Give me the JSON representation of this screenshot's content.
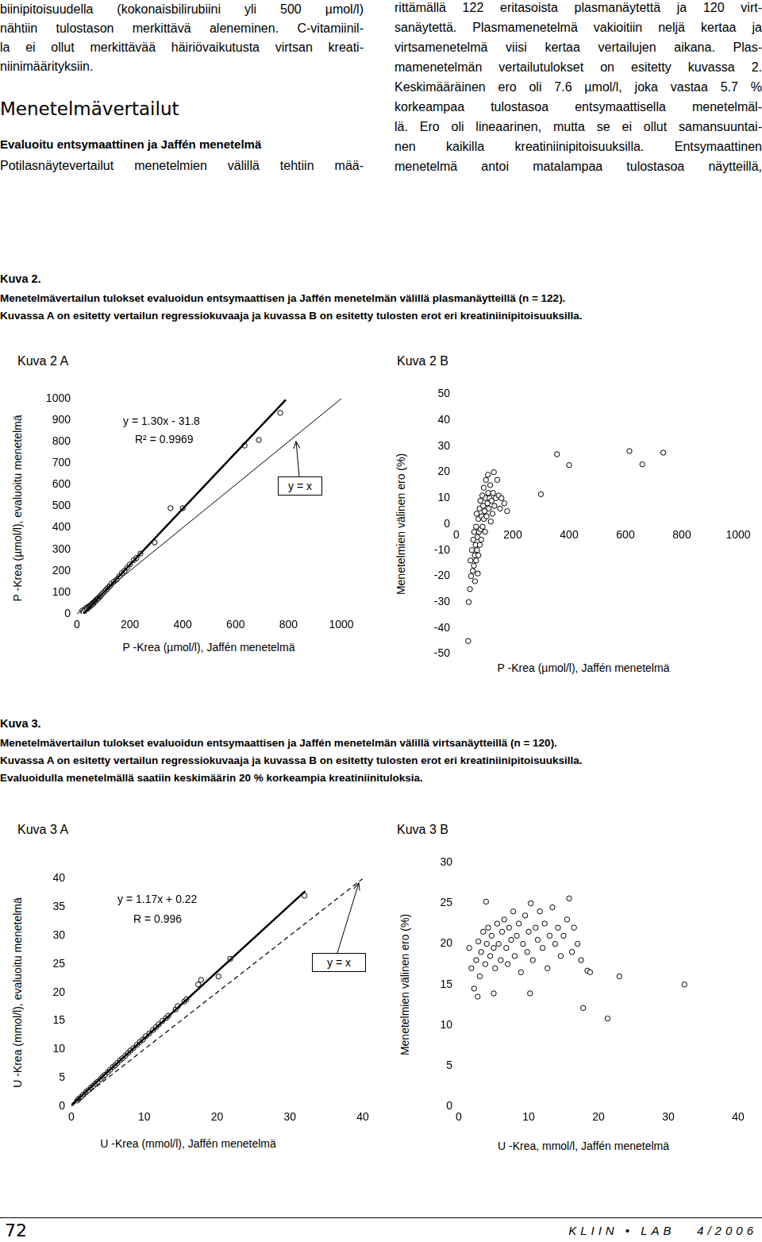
{
  "page": {
    "left_column": {
      "lines": [
        "biinipitoisuudella (kokonaisbilirubiini yli 500 µmol/l)",
        "nähtiin tulostason merkittävä aleneminen. C-vitamiinil-",
        "la ei ollut merkittävää häiriövaikutusta virtsan kreati-",
        "niinimäärityksiin."
      ],
      "heading": "Menetelmävertailut",
      "subheading": "Evaluoitu entsymaattinen ja Jaffén menetelmä",
      "after_lines": [
        "Potilasnäytevertailut menetelmien välillä tehtiin mää-"
      ]
    },
    "right_column": {
      "lines": [
        "rittämällä 122 eritasoista plasmanäytettä ja 120 virt-",
        "sanäytettä. Plasmamenetelmä vakioitiin neljä kertaa ja",
        "virtsamenetelmä viisi kertaa vertailujen aikana. Plas-",
        "mamenetelmän vertailutulokset on esitetty kuvassa 2.",
        "Keskimääräinen ero oli 7.6 µmol/l, joka vastaa 5.7 %",
        "korkeampaa tulostasoa entsymaattisella menetelmäl-",
        "lä. Ero oli lineaarinen, mutta se ei ollut samansuuntai-",
        "nen kaikilla kreatiniinipitoisuuksilla. Entsymaattinen",
        "menetelmä antoi matalampaa tulostasoa näytteillä,"
      ]
    },
    "figures": [
      {
        "label": "Kuva 2.",
        "caption": [
          "Menetelmävertailun tulokset evaluoidun entsymaattisen ja Jaffén menetelmän välillä plasmanäytteillä (n = 122).",
          "Kuvassa A on esitetty vertailun regressiokuvaaja ja kuvassa B on esitetty tulosten erot eri kreatiniinipitoisuuksilla."
        ]
      },
      {
        "label": "Kuva 3.",
        "caption": [
          "Menetelmävertailun tulokset evaluoidun entsymaattisen ja Jaffén menetelmän välillä virtsanäytteillä (n = 120).",
          "Kuvassa A on esitetty vertailun regressiokuvaaja ja kuvassa B on esitetty tulosten erot eri kreatiniinipitoisuuksilla.",
          "Evaluoidulla menetelmällä saatiin keskimäärin 20 % korkeampia kreatiniinituloksia."
        ]
      }
    ],
    "footer": {
      "page_number": "72",
      "journal": "KLIIN • LAB",
      "issue": "4/2006"
    }
  },
  "chart_data": [
    {
      "type": "scatter",
      "title": "Kuva 2 A",
      "xlabel": "P -Krea (µmol/l), Jaffén menetelmä",
      "ylabel": "P -Krea (µmol/l), evaluoitu menetelmä",
      "xlim": [
        0,
        1000
      ],
      "ylim": [
        0,
        1000
      ],
      "xticks": [
        0,
        200,
        400,
        600,
        800,
        1000
      ],
      "yticks": [
        0,
        100,
        200,
        300,
        400,
        500,
        600,
        700,
        800,
        900,
        1000
      ],
      "grid": false,
      "annotations": [
        "y = 1.30x - 31.8",
        "R² = 0.9969",
        "y = x"
      ],
      "series": [
        {
          "type": "scatter",
          "marker": "circle",
          "color": "#000000",
          "x": [
            20,
            25,
            30,
            35,
            38,
            42,
            45,
            48,
            50,
            52,
            55,
            58,
            60,
            62,
            65,
            68,
            70,
            72,
            75,
            78,
            80,
            85,
            88,
            90,
            95,
            100,
            105,
            110,
            115,
            120,
            125,
            130,
            140,
            150,
            160,
            170,
            180,
            190,
            200,
            215,
            225,
            240,
            294,
            354,
            400,
            634,
            688,
            769
          ],
          "values": [
            15,
            8,
            20,
            28,
            22,
            30,
            35,
            33,
            38,
            40,
            42,
            48,
            45,
            52,
            55,
            58,
            60,
            62,
            68,
            70,
            72,
            78,
            82,
            85,
            92,
            98,
            105,
            112,
            118,
            125,
            130,
            140,
            150,
            160,
            175,
            190,
            200,
            215,
            230,
            250,
            260,
            280,
            332,
            491,
            491,
            782,
            808,
            934
          ]
        },
        {
          "type": "line",
          "line_style": "solid",
          "color": "#000000",
          "x": [
            25,
            790
          ],
          "values": [
            0.7,
            995
          ]
        },
        {
          "type": "line",
          "line_style": "solid",
          "color": "#000000",
          "x": [
            0,
            1000
          ],
          "values": [
            0,
            1000
          ]
        }
      ]
    },
    {
      "type": "scatter",
      "title": "Kuva 2 B",
      "xlabel": "P -Krea (µmol/l), Jaffén menetelmä",
      "ylabel": "Menetelmien välinen ero (%)",
      "xlim": [
        0,
        1000
      ],
      "ylim": [
        -50,
        50
      ],
      "xticks": [
        0,
        200,
        400,
        600,
        800,
        1000
      ],
      "yticks": [
        -50,
        -40,
        -30,
        -20,
        -10,
        0,
        10,
        20,
        30,
        40,
        50
      ],
      "grid": false,
      "series": [
        {
          "type": "scatter",
          "marker": "circle",
          "color": "#000000",
          "x": [
            42,
            44,
            48,
            50,
            52,
            55,
            58,
            60,
            62,
            63,
            65,
            66,
            68,
            70,
            70,
            72,
            73,
            75,
            76,
            78,
            78,
            80,
            82,
            83,
            85,
            86,
            88,
            90,
            92,
            93,
            95,
            97,
            98,
            100,
            102,
            104,
            105,
            107,
            110,
            112,
            113,
            115,
            118,
            120,
            122,
            125,
            128,
            130,
            133,
            135,
            140,
            145,
            150,
            155,
            160,
            170,
            180,
            300,
            357,
            400,
            614,
            660,
            734
          ],
          "values": [
            -45,
            -30,
            -25,
            -14,
            -20,
            -10,
            -18,
            -6,
            -16,
            -3,
            -12,
            -22,
            -8,
            -1,
            -14,
            4,
            -10,
            -5,
            -19,
            2,
            -12,
            -3,
            6,
            -8,
            9,
            -2,
            -6,
            3,
            11,
            -1,
            7,
            14,
            2,
            5,
            -3,
            10,
            17,
            3,
            8,
            19,
            12,
            6,
            10,
            15,
            1,
            9,
            4,
            12,
            20,
            7,
            10,
            17,
            11,
            6,
            10,
            8,
            5,
            11.5,
            26.9,
            22.7,
            28.1,
            23,
            27.5
          ]
        }
      ]
    },
    {
      "type": "scatter",
      "title": "Kuva 3 A",
      "xlabel": "U -Krea (mmol/l), Jaffén menetelmä",
      "ylabel": "U -Krea (mmol/l), evaluoitu menetelmä",
      "xlim": [
        0,
        40
      ],
      "ylim": [
        0,
        40
      ],
      "xticks": [
        0,
        10,
        20,
        30,
        40
      ],
      "yticks": [
        0,
        5,
        10,
        15,
        20,
        25,
        30,
        35,
        40
      ],
      "grid": false,
      "annotations": [
        "y = 1.17x + 0.22",
        "R = 0.996",
        "y = x"
      ],
      "series": [
        {
          "type": "scatter",
          "marker": "circle",
          "color": "#000000",
          "x": [
            0.8,
            1.0,
            1.3,
            1.6,
            2.0,
            2.3,
            2.7,
            3.0,
            3.3,
            3.6,
            4.0,
            4.3,
            4.6,
            5.0,
            5.3,
            5.7,
            6.0,
            6.3,
            6.7,
            7.0,
            7.4,
            7.8,
            8.1,
            8.5,
            9.0,
            9.4,
            9.8,
            10.2,
            10.7,
            11.2,
            11.6,
            12.0,
            12.5,
            13.0,
            13.3,
            14.3,
            14.6,
            15.5,
            15.8,
            17.4,
            17.8,
            20.2,
            21.8,
            32.0
          ],
          "values": [
            1.0,
            1.3,
            1.6,
            2.0,
            2.5,
            2.8,
            3.3,
            3.6,
            4.0,
            4.3,
            4.8,
            5.2,
            5.5,
            6.0,
            6.4,
            6.9,
            7.2,
            7.6,
            8.1,
            8.4,
            8.9,
            9.4,
            9.8,
            10.2,
            10.8,
            11.3,
            11.7,
            12.3,
            12.8,
            13.4,
            13.9,
            14.4,
            15.0,
            15.5,
            15.9,
            17.0,
            17.6,
            18.4,
            18.8,
            21.4,
            22.2,
            22.8,
            25.9,
            37.0
          ]
        },
        {
          "type": "line",
          "line_style": "solid",
          "color": "#000000",
          "x": [
            0,
            32.1
          ],
          "values": [
            0.2,
            37.8
          ]
        },
        {
          "type": "line",
          "line_style": "dashed",
          "color": "#000000",
          "x": [
            0,
            40
          ],
          "values": [
            0,
            40
          ]
        }
      ]
    },
    {
      "type": "scatter",
      "title": "Kuva 3 B",
      "xlabel": "U -Krea, mmol/l, Jaffén menetelmä",
      "ylabel": "Menetelmien välinen ero (%)",
      "xlim": [
        0,
        40
      ],
      "ylim": [
        0,
        30
      ],
      "xticks": [
        0,
        10,
        20,
        30,
        40
      ],
      "yticks": [
        0,
        5,
        10,
        15,
        20,
        25,
        30
      ],
      "grid": false,
      "series": [
        {
          "type": "scatter",
          "marker": "circle",
          "color": "#000000",
          "x": [
            2.2,
            2.7,
            3.9,
            5.0,
            10.2,
            17.8,
            18.4,
            18.8,
            21.3,
            23.0,
            32.3,
            2.5,
            2.8,
            3.0,
            3.2,
            3.5,
            3.8,
            4.0,
            4.2,
            4.5,
            4.7,
            5.0,
            5.2,
            5.5,
            5.7,
            6.0,
            6.2,
            6.5,
            6.8,
            7.0,
            7.2,
            7.5,
            7.8,
            8.0,
            8.3,
            8.6,
            8.9,
            9.2,
            9.5,
            9.8,
            10.0,
            10.3,
            10.6,
            11.0,
            11.3,
            11.6,
            12.0,
            12.3,
            12.7,
            13.0,
            13.4,
            13.8,
            14.2,
            14.6,
            15.0,
            15.5,
            15.8,
            16.2,
            16.5,
            17.0,
            17.5,
            1.8,
            1.5
          ],
          "values": [
            14.5,
            13.5,
            25.2,
            13.9,
            13.9,
            12.1,
            16.7,
            16.5,
            10.8,
            16.0,
            15.0,
            18.0,
            20.3,
            16.0,
            19.0,
            21.5,
            17.5,
            20.0,
            22.0,
            18.5,
            21.0,
            19.5,
            17.0,
            22.5,
            20.0,
            18.0,
            21.5,
            23.0,
            19.5,
            17.5,
            22.0,
            20.5,
            24.0,
            18.5,
            21.0,
            22.5,
            16.5,
            20.0,
            23.5,
            19.0,
            21.5,
            25.0,
            18.0,
            22.0,
            20.5,
            24.0,
            19.5,
            22.5,
            17.0,
            21.0,
            24.5,
            20.0,
            22.0,
            18.5,
            21.0,
            23.0,
            25.6,
            19.0,
            22.0,
            20.0,
            18.0,
            17.0,
            19.5
          ]
        }
      ]
    }
  ]
}
